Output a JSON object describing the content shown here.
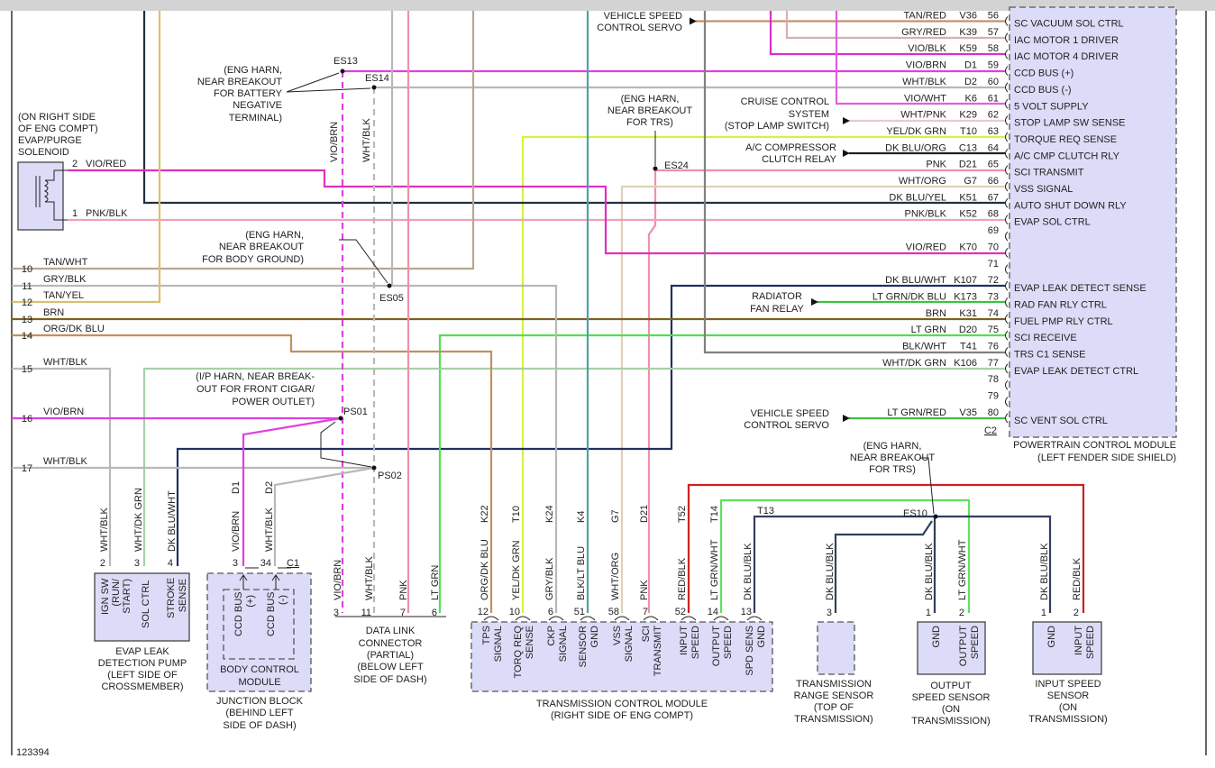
{
  "diagram_id": "123394",
  "wire_colors": {
    "TAN/RED": "#c8906a",
    "GRY/RED": "#d8b0b0",
    "VIO/BLK": "#d830c8",
    "VIO/BRN": "#e040e0",
    "WHT/BLK": "#b8b8b8",
    "VIO/WHT": "#e060e0",
    "WHT/PNK": "#ecc8d0",
    "YEL/DK GRN": "#d8f040",
    "DK BLU/ORG": "#222222",
    "PNK": "#f090a8",
    "WHT/ORG": "#e0d0b8",
    "DK BLU/YEL": "#203040",
    "PNK/BLK": "#f0a0b8",
    "VIO/RED": "#e030c0",
    "DK BLU/WHT": "#203060",
    "LT GRN/DK BLU": "#40c040",
    "BRN": "#806020",
    "LT GRN": "#50e050",
    "BLK/WHT": "#808080",
    "WHT/DK GRN": "#a8d0a8",
    "LT GRN/RED": "#40c040",
    "TAN/WHT": "#b8a890",
    "GRY/BLK": "#b8b8b8",
    "TAN/YEL": "#d8c070",
    "ORG/DK BLU": "#c09060",
    "BLK/LT BLU": "#50a0a8",
    "RED/BLK": "#d02020",
    "LT GRN/WHT": "#60e060",
    "DK BLU/BLK": "#304060",
    "BLACK": "#222222"
  },
  "pcm": {
    "title": "POWERTRAIN CONTROL MODULE",
    "location": "(LEFT FENDER SIDE SHIELD)",
    "connector": "C2",
    "pins": [
      {
        "pin": "56",
        "wire": "TAN/RED",
        "circuit": "V36",
        "function": "SC VACUUM SOL CTRL"
      },
      {
        "pin": "57",
        "wire": "GRY/RED",
        "circuit": "K39",
        "function": "IAC MOTOR 1 DRIVER"
      },
      {
        "pin": "58",
        "wire": "VIO/BLK",
        "circuit": "K59",
        "function": "IAC MOTOR 4 DRIVER"
      },
      {
        "pin": "59",
        "wire": "VIO/BRN",
        "circuit": "D1",
        "function": "CCD BUS (+)"
      },
      {
        "pin": "60",
        "wire": "WHT/BLK",
        "circuit": "D2",
        "function": "CCD BUS (-)"
      },
      {
        "pin": "61",
        "wire": "VIO/WHT",
        "circuit": "K6",
        "function": "5 VOLT SUPPLY"
      },
      {
        "pin": "62",
        "wire": "WHT/PNK",
        "circuit": "K29",
        "function": "STOP LAMP SW SENSE"
      },
      {
        "pin": "63",
        "wire": "YEL/DK GRN",
        "circuit": "T10",
        "function": "TORQUE REQ SENSE"
      },
      {
        "pin": "64",
        "wire": "DK BLU/ORG",
        "circuit": "C13",
        "function": "A/C CMP CLUTCH RLY"
      },
      {
        "pin": "65",
        "wire": "PNK",
        "circuit": "D21",
        "function": "SCI TRANSMIT"
      },
      {
        "pin": "66",
        "wire": "WHT/ORG",
        "circuit": "G7",
        "function": "VSS SIGNAL"
      },
      {
        "pin": "67",
        "wire": "DK BLU/YEL",
        "circuit": "K51",
        "function": "AUTO SHUT DOWN RLY"
      },
      {
        "pin": "68",
        "wire": "PNK/BLK",
        "circuit": "K52",
        "function": "EVAP SOL CTRL"
      },
      {
        "pin": "69",
        "wire": "",
        "circuit": "",
        "function": ""
      },
      {
        "pin": "70",
        "wire": "VIO/RED",
        "circuit": "K70",
        "function": ""
      },
      {
        "pin": "71",
        "wire": "",
        "circuit": "",
        "function": ""
      },
      {
        "pin": "72",
        "wire": "DK BLU/WHT",
        "circuit": "K107",
        "function": "EVAP LEAK DETECT SENSE"
      },
      {
        "pin": "73",
        "wire": "LT GRN/DK BLU",
        "circuit": "K173",
        "function": "RAD FAN RLY CTRL"
      },
      {
        "pin": "74",
        "wire": "BRN",
        "circuit": "K31",
        "function": "FUEL PMP RLY CTRL"
      },
      {
        "pin": "75",
        "wire": "LT GRN",
        "circuit": "D20",
        "function": "SCI RECEIVE"
      },
      {
        "pin": "76",
        "wire": "BLK/WHT",
        "circuit": "T41",
        "function": "TRS C1 SENSE"
      },
      {
        "pin": "77",
        "wire": "WHT/DK GRN",
        "circuit": "K106",
        "function": "EVAP LEAK DETECT CTRL"
      },
      {
        "pin": "78",
        "wire": "",
        "circuit": "",
        "function": ""
      },
      {
        "pin": "79",
        "wire": "",
        "circuit": "",
        "function": ""
      },
      {
        "pin": "80",
        "wire": "LT GRN/RED",
        "circuit": "V35",
        "function": "SC VENT SOL CTRL"
      }
    ]
  },
  "left_circuits": [
    {
      "num": "10",
      "wire": "TAN/WHT"
    },
    {
      "num": "11",
      "wire": "GRY/BLK"
    },
    {
      "num": "12",
      "wire": "TAN/YEL"
    },
    {
      "num": "13",
      "wire": "BRN"
    },
    {
      "num": "14",
      "wire": "ORG/DK BLU"
    },
    {
      "num": "15",
      "wire": "WHT/BLK"
    },
    {
      "num": "16",
      "wire": "VIO/BRN"
    },
    {
      "num": "17",
      "wire": "WHT/BLK"
    }
  ],
  "evap_purge": {
    "note": [
      "(ON RIGHT SIDE",
      "OF ENG COMPT)",
      "EVAP/PURGE",
      "SOLENOID"
    ],
    "pins": [
      {
        "pin": "2",
        "wire": "VIO/RED"
      },
      {
        "pin": "1",
        "wire": "PNK/BLK"
      }
    ]
  },
  "splices": {
    "es13": "ES13",
    "es14": "ES14",
    "es05": "ES05",
    "es24": "ES24",
    "ps01": "PS01",
    "ps02": "PS02",
    "es10": "ES10"
  },
  "notes": {
    "battery": [
      "(ENG HARN,",
      "NEAR BREAKOUT",
      "FOR BATTERY",
      "NEGATIVE",
      "TERMINAL)"
    ],
    "body_ground": [
      "(ENG HARN,",
      "NEAR BREAKOUT",
      "FOR BODY GROUND)"
    ],
    "cigar": [
      "(I/P HARN, NEAR BREAK-",
      "OUT FOR FRONT CIGAR/",
      "POWER OUTLET)"
    ],
    "trs_top": [
      "(ENG HARN,",
      "NEAR BREAKOUT",
      "FOR TRS)"
    ],
    "trs_bottom": [
      "(ENG HARN,",
      "NEAR BREAKOUT",
      "FOR TRS)"
    ],
    "vsc_servo_top": [
      "VEHICLE SPEED",
      "CONTROL SERVO"
    ],
    "cruise": [
      "CRUISE CONTROL",
      "SYSTEM",
      "(STOP LAMP SWITCH)"
    ],
    "ac_relay": [
      "A/C COMPRESSOR",
      "CLUTCH RELAY"
    ],
    "rad_fan": [
      "RADIATOR",
      "FAN RELAY"
    ],
    "vsc_servo_bottom": [
      "VEHICLE SPEED",
      "CONTROL SERVO"
    ]
  },
  "top_wire_labels": {
    "vio_brn": "VIO/BRN",
    "wht_blk": "WHT/BLK"
  },
  "evap_pump": {
    "caption": [
      "EVAP LEAK",
      "DETECTION PUMP",
      "(LEFT SIDE OF",
      "CROSSMEMBER)"
    ],
    "pins": [
      {
        "pin": "2",
        "wire": "WHT/BLK",
        "function": [
          "IGN SW",
          "(RUN/",
          "START)"
        ]
      },
      {
        "pin": "3",
        "wire": "WHT/DK GRN",
        "function": [
          "SOL CTRL"
        ]
      },
      {
        "pin": "4",
        "wire": "DK BLU/WHT",
        "function": [
          "STROKE",
          "SENSE"
        ]
      }
    ]
  },
  "junction_block": {
    "caption": [
      "JUNCTION BLOCK",
      "(BEHIND LEFT",
      "SIDE OF DASH)"
    ],
    "bcm_caption": [
      "BODY CONTROL",
      "MODULE"
    ],
    "connector": "C1",
    "pins": [
      {
        "pin": "3",
        "circuit": "D1",
        "wire": "VIO/BRN",
        "function": [
          "CCD BUS",
          "(+)"
        ]
      },
      {
        "pin": "34",
        "circuit": "D2",
        "wire": "WHT/BLK",
        "function": [
          "CCD BUS",
          "(-)"
        ]
      }
    ]
  },
  "dlc": {
    "caption": [
      "DATA LINK",
      "CONNECTOR",
      "(PARTIAL)",
      "(BELOW LEFT",
      "SIDE OF DASH)"
    ],
    "pins": [
      {
        "pin": "3",
        "wire": "VIO/BRN"
      },
      {
        "pin": "11",
        "wire": "WHT/BLK"
      },
      {
        "pin": "7",
        "wire": "PNK"
      },
      {
        "pin": "6",
        "wire": "LT GRN"
      }
    ]
  },
  "tcm": {
    "caption": [
      "TRANSMISSION CONTROL MODULE",
      "(RIGHT SIDE OF ENG COMPT)"
    ],
    "pins": [
      {
        "pin": "12",
        "wire": "ORG/DK BLU",
        "circuit": "K22",
        "function": [
          "TPS",
          "SIGNAL"
        ]
      },
      {
        "pin": "10",
        "wire": "YEL/DK GRN",
        "circuit": "T10",
        "function": [
          "TORQ REQ",
          "SENSE"
        ]
      },
      {
        "pin": "6",
        "wire": "GRY/BLK",
        "circuit": "K24",
        "function": [
          "CKP",
          "SIGNAL"
        ]
      },
      {
        "pin": "51",
        "wire": "BLK/LT BLU",
        "circuit": "K4",
        "function": [
          "SENSOR",
          "GND"
        ]
      },
      {
        "pin": "58",
        "wire": "WHT/ORG",
        "circuit": "G7",
        "function": [
          "VSS",
          "SIGNAL"
        ]
      },
      {
        "pin": "7",
        "wire": "PNK",
        "circuit": "D21",
        "function": [
          "SCI",
          "TRANSMIT"
        ]
      },
      {
        "pin": "52",
        "wire": "RED/BLK",
        "circuit": "T52",
        "function": [
          "INPUT",
          "SPEED"
        ]
      },
      {
        "pin": "14",
        "wire": "LT GRN/WHT",
        "circuit": "T14",
        "function": [
          "OUTPUT",
          "SPEED"
        ]
      },
      {
        "pin": "13",
        "wire": "DK BLU/BLK",
        "circuit": "T13",
        "function": [
          "SPD SENS",
          "GND"
        ]
      }
    ]
  },
  "trs": {
    "caption": [
      "TRANSMISSION",
      "RANGE SENSOR",
      "(TOP OF",
      "TRANSMISSION)"
    ],
    "pin": "3",
    "wire": "DK BLU/BLK"
  },
  "output_sensor": {
    "caption": [
      "OUTPUT",
      "SPEED SENSOR",
      "(ON",
      "TRANSMISSION)"
    ],
    "pins": [
      {
        "pin": "1",
        "wire": "DK BLU/BLK",
        "function": [
          "GND"
        ]
      },
      {
        "pin": "2",
        "wire": "LT GRN/WHT",
        "function": [
          "OUTPUT",
          "SPEED"
        ]
      }
    ]
  },
  "input_sensor": {
    "caption": [
      "INPUT SPEED",
      "SENSOR",
      "(ON",
      "TRANSMISSION)"
    ],
    "pins": [
      {
        "pin": "1",
        "wire": "DK BLU/BLK",
        "function": [
          "GND"
        ]
      },
      {
        "pin": "2",
        "wire": "RED/BLK",
        "function": [
          "INPUT",
          "SPEED"
        ]
      }
    ]
  }
}
